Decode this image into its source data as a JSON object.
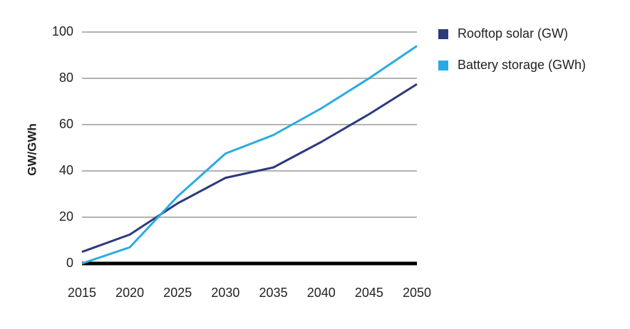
{
  "chart_data": {
    "type": "line",
    "y_label": "GW/GWh",
    "x": [
      2015,
      2020,
      2025,
      2030,
      2035,
      2040,
      2045,
      2050
    ],
    "xlim": [
      2015,
      2050
    ],
    "xticks": [
      2015,
      2020,
      2025,
      2030,
      2035,
      2040,
      2045,
      2050
    ],
    "ylim": [
      0,
      100
    ],
    "yticks": [
      0,
      20,
      40,
      60,
      80,
      100
    ],
    "grid": true,
    "legend": "right",
    "series": [
      {
        "name": "Rooftop solar (GW)",
        "color": "#2e3a7c",
        "values": [
          5,
          12.5,
          26,
          37,
          41.5,
          52.5,
          64.5,
          77.5
        ]
      },
      {
        "name": "Battery storage (GWh)",
        "color": "#29abe2",
        "values": [
          0,
          7,
          29,
          47.5,
          55.5,
          67,
          80,
          94
        ]
      }
    ]
  }
}
